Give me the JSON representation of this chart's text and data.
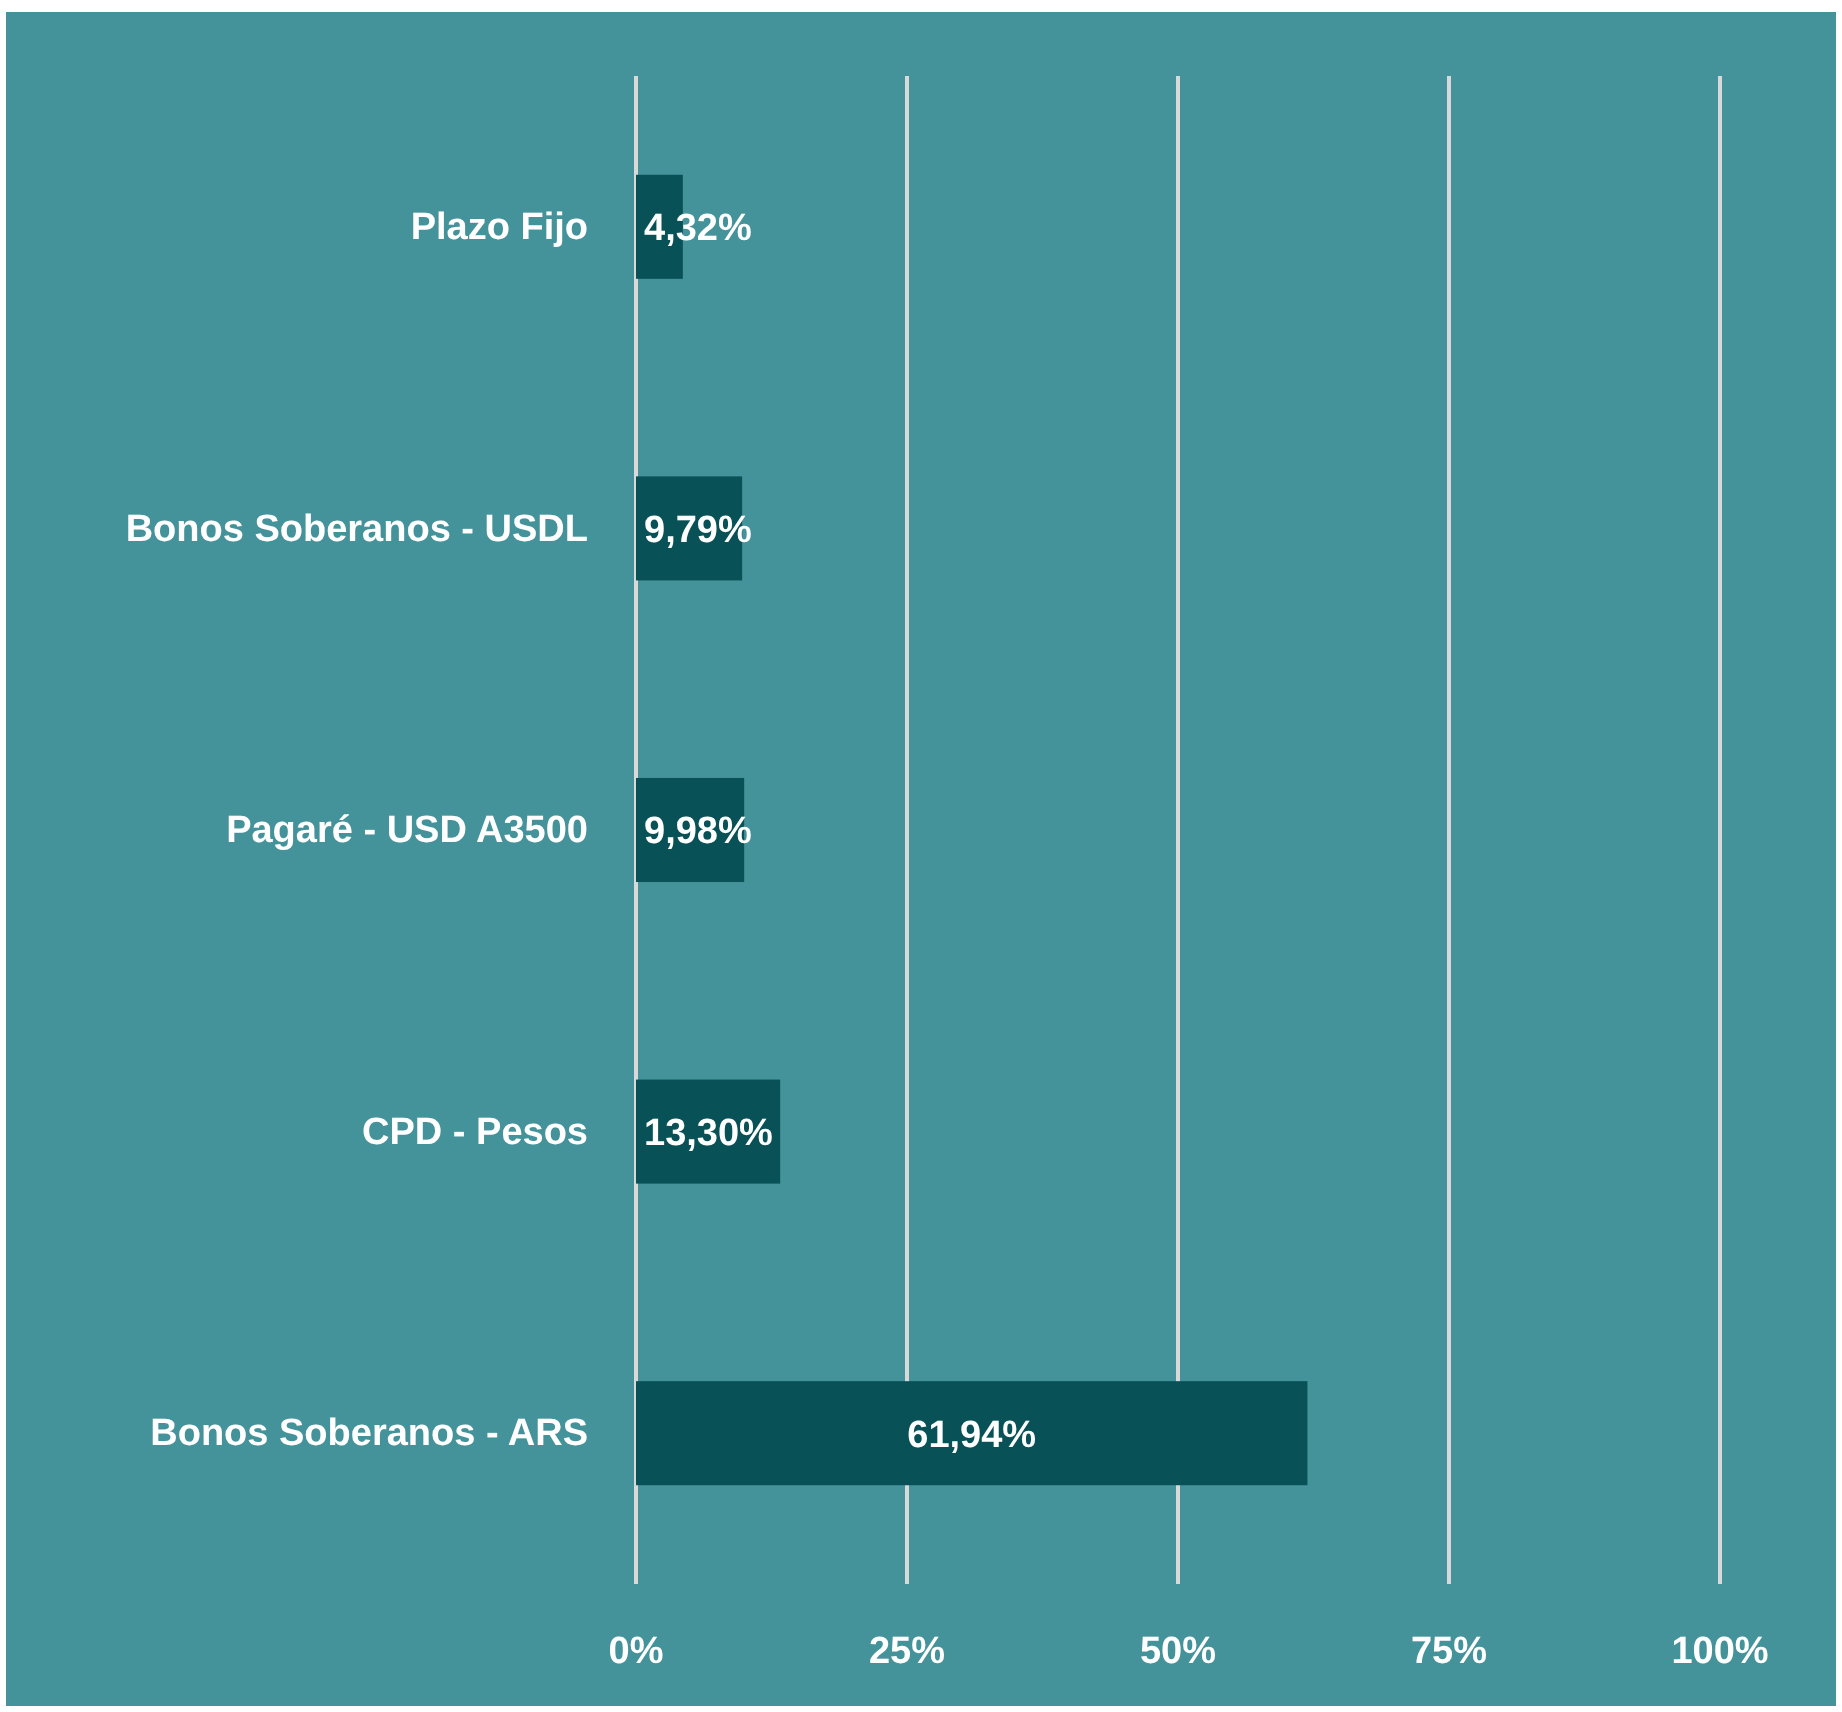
{
  "chart_data": {
    "type": "bar",
    "orientation": "horizontal",
    "categories": [
      "Plazo Fijo",
      "Bonos Soberanos - USDL",
      "Pagaré - USD A3500",
      "CPD - Pesos",
      "Bonos Soberanos - ARS"
    ],
    "values": [
      4.32,
      9.79,
      9.98,
      13.3,
      61.94
    ],
    "color": "#075157",
    "value_labels": [
      "4,32%",
      "9,79%",
      "9,98%",
      "13,30%",
      "61,94%"
    ],
    "xlim": [
      0,
      100
    ],
    "xticks": [
      {
        "value": 0,
        "label": "0%"
      },
      {
        "value": 25,
        "label": "25%"
      },
      {
        "value": 50,
        "label": "50%"
      },
      {
        "value": 75,
        "label": "75%"
      },
      {
        "value": 100,
        "label": "100%"
      }
    ],
    "grid": "x"
  }
}
